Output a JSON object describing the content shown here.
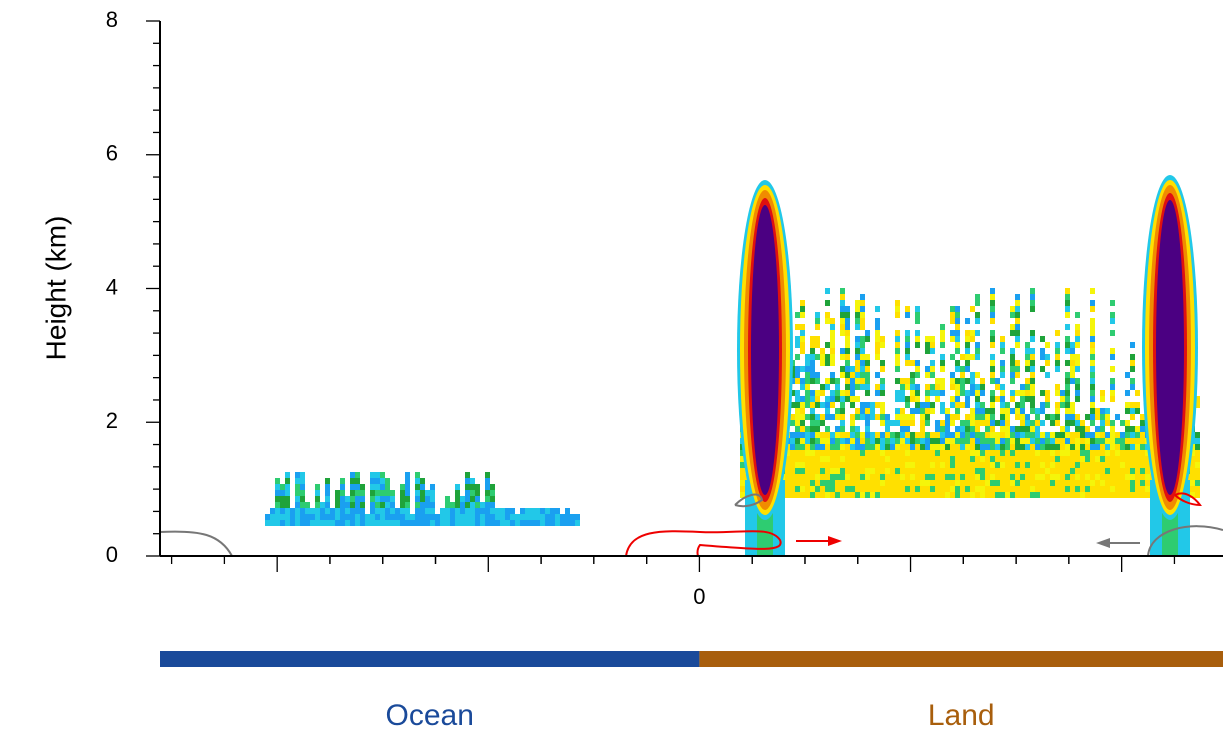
{
  "chart_data": {
    "type": "field",
    "ylabel": "Height (km)",
    "ylim": [
      0,
      8
    ],
    "yticks": [
      0,
      2,
      4,
      6,
      8
    ],
    "xlim": [
      -2.555,
      2.48
    ],
    "xticks": [
      {
        "value": -2,
        "label": null
      },
      {
        "value": -1,
        "label": null
      },
      0,
      {
        "value": 1,
        "label": null
      },
      {
        "value": 2,
        "label": null
      }
    ],
    "regions": [
      {
        "name": "Ocean",
        "color": "#1a4a9a",
        "xrange": [
          -2.555,
          0
        ]
      },
      {
        "name": "Land",
        "color": "#a85e0c",
        "xrange": [
          0,
          2.48
        ]
      }
    ]
  }
}
